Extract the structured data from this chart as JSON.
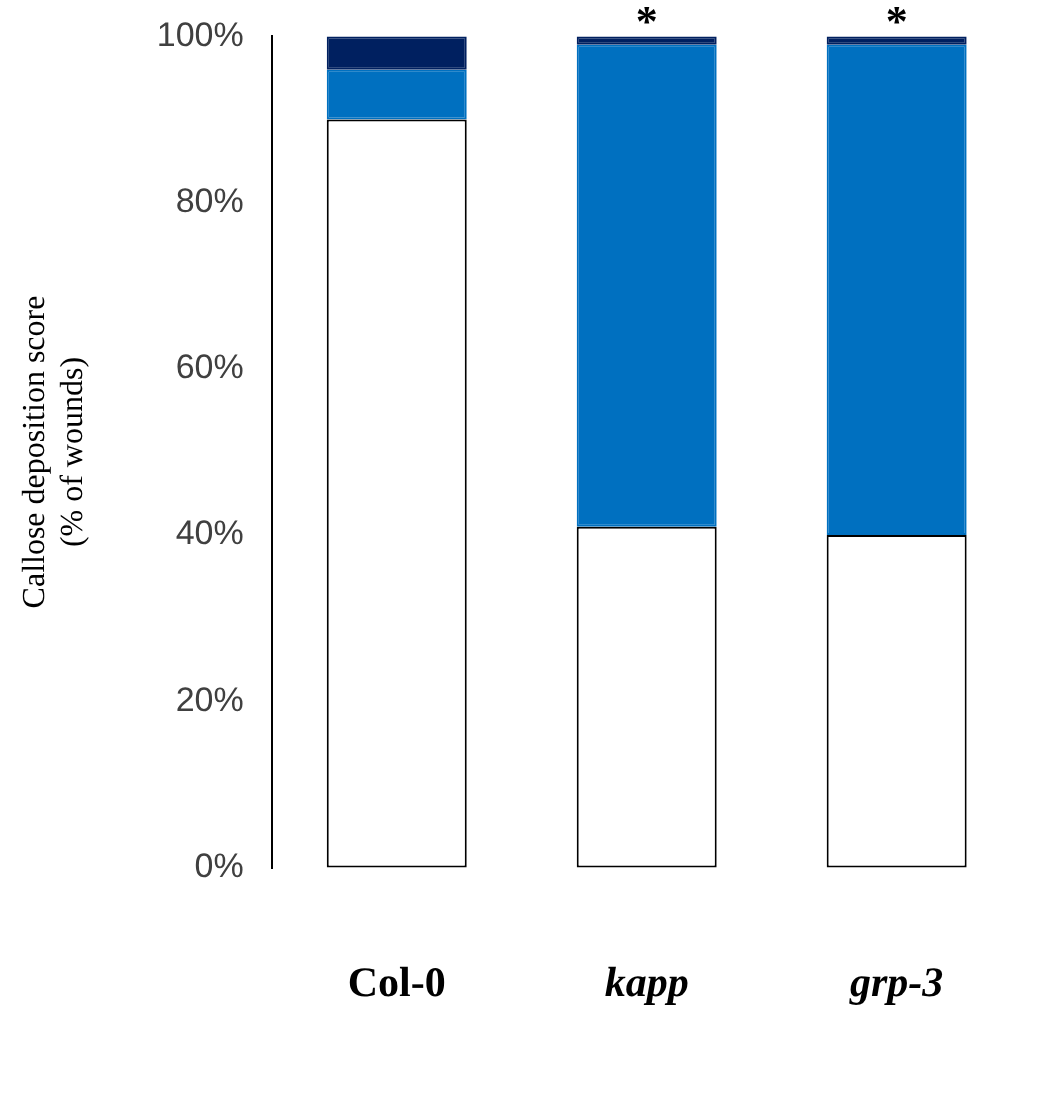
{
  "chart_data": {
    "type": "bar",
    "stacked": true,
    "ylabel": "Callose deposition score\n(% of wounds)",
    "categories": [
      "Col-0",
      "kapp",
      "grp-3"
    ],
    "series": [
      {
        "color": "#ffffff",
        "values": [
          90,
          41,
          40
        ]
      },
      {
        "color": "#0070c0",
        "values": [
          6,
          58,
          59
        ]
      },
      {
        "color": "#002060",
        "values": [
          4,
          1,
          1
        ]
      }
    ],
    "ylim": [
      0,
      100
    ],
    "yticks": [
      {
        "value": 0,
        "label": "0%"
      },
      {
        "value": 20,
        "label": "20%"
      },
      {
        "value": 40,
        "label": "40%"
      },
      {
        "value": 60,
        "label": "60%"
      },
      {
        "value": 80,
        "label": "80%"
      },
      {
        "value": 100,
        "label": "100%"
      }
    ],
    "annotations": [
      {
        "text": "*",
        "x": "kapp",
        "y": 100
      },
      {
        "text": "*",
        "x": "grp-3",
        "y": 100
      }
    ],
    "grid": false,
    "legend": false
  }
}
